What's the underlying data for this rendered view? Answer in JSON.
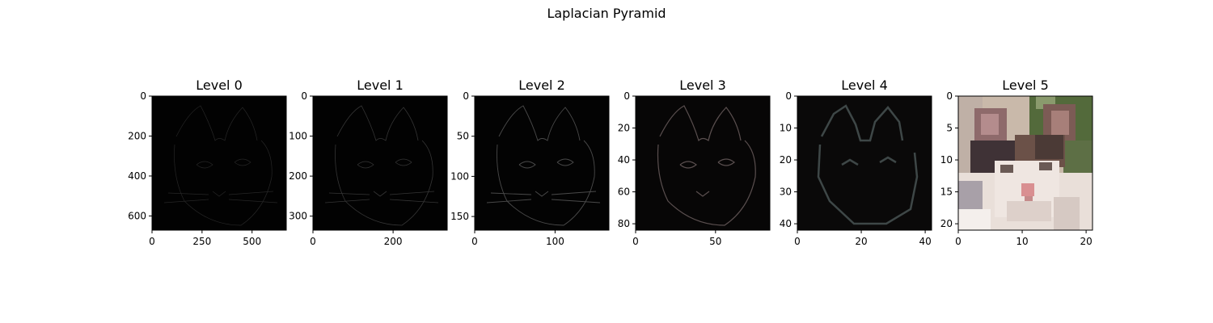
{
  "figure": {
    "suptitle": "Laplacian Pyramid"
  },
  "chart_data": [
    {
      "type": "image",
      "title": "Level 0",
      "xlim": [
        0,
        671
      ],
      "ylim": [
        671,
        0
      ],
      "xticks": [
        0,
        250,
        500
      ],
      "yticks": [
        0,
        200,
        400,
        600
      ],
      "content": "dark laplacian detail layer, faint cat edges",
      "brightness": 0.06
    },
    {
      "type": "image",
      "title": "Level 1",
      "xlim": [
        0,
        335
      ],
      "ylim": [
        335,
        0
      ],
      "xticks": [
        0,
        200
      ],
      "yticks": [
        0,
        100,
        200,
        300
      ],
      "content": "dark laplacian detail layer, faint cat edges",
      "brightness": 0.09
    },
    {
      "type": "image",
      "title": "Level 2",
      "xlim": [
        0,
        167
      ],
      "ylim": [
        167,
        0
      ],
      "xticks": [
        0,
        100
      ],
      "yticks": [
        0,
        50,
        100,
        150
      ],
      "content": "dark laplacian detail layer, cat edges",
      "brightness": 0.14
    },
    {
      "type": "image",
      "title": "Level 3",
      "xlim": [
        0,
        84
      ],
      "ylim": [
        84,
        0
      ],
      "xticks": [
        0,
        50
      ],
      "yticks": [
        0,
        20,
        40,
        60,
        80
      ],
      "content": "dark laplacian detail layer, cat edges",
      "brightness": 0.2
    },
    {
      "type": "image",
      "title": "Level 4",
      "xlim": [
        0,
        42
      ],
      "ylim": [
        42,
        0
      ],
      "xticks": [
        0,
        20,
        40
      ],
      "yticks": [
        0,
        10,
        20,
        30,
        40
      ],
      "content": "dark laplacian detail layer, blocky cat edges",
      "brightness": 0.25
    },
    {
      "type": "image",
      "title": "Level 5",
      "xlim": [
        0,
        21
      ],
      "ylim": [
        21,
        0
      ],
      "xticks": [
        0,
        10,
        20
      ],
      "yticks": [
        0,
        5,
        10,
        15,
        20
      ],
      "content": "low resolution color image of a cat",
      "brightness": 1
    }
  ],
  "colors": {
    "detail_bg": "#020202",
    "edge": "#3a3a3a",
    "cat_white": "#e9dfd9",
    "cat_brown": "#6b5148",
    "cat_dark": "#3f3236",
    "wall_beige": "#c9b9aa",
    "foliage": "#536a3b",
    "nose": "#d98f91"
  }
}
